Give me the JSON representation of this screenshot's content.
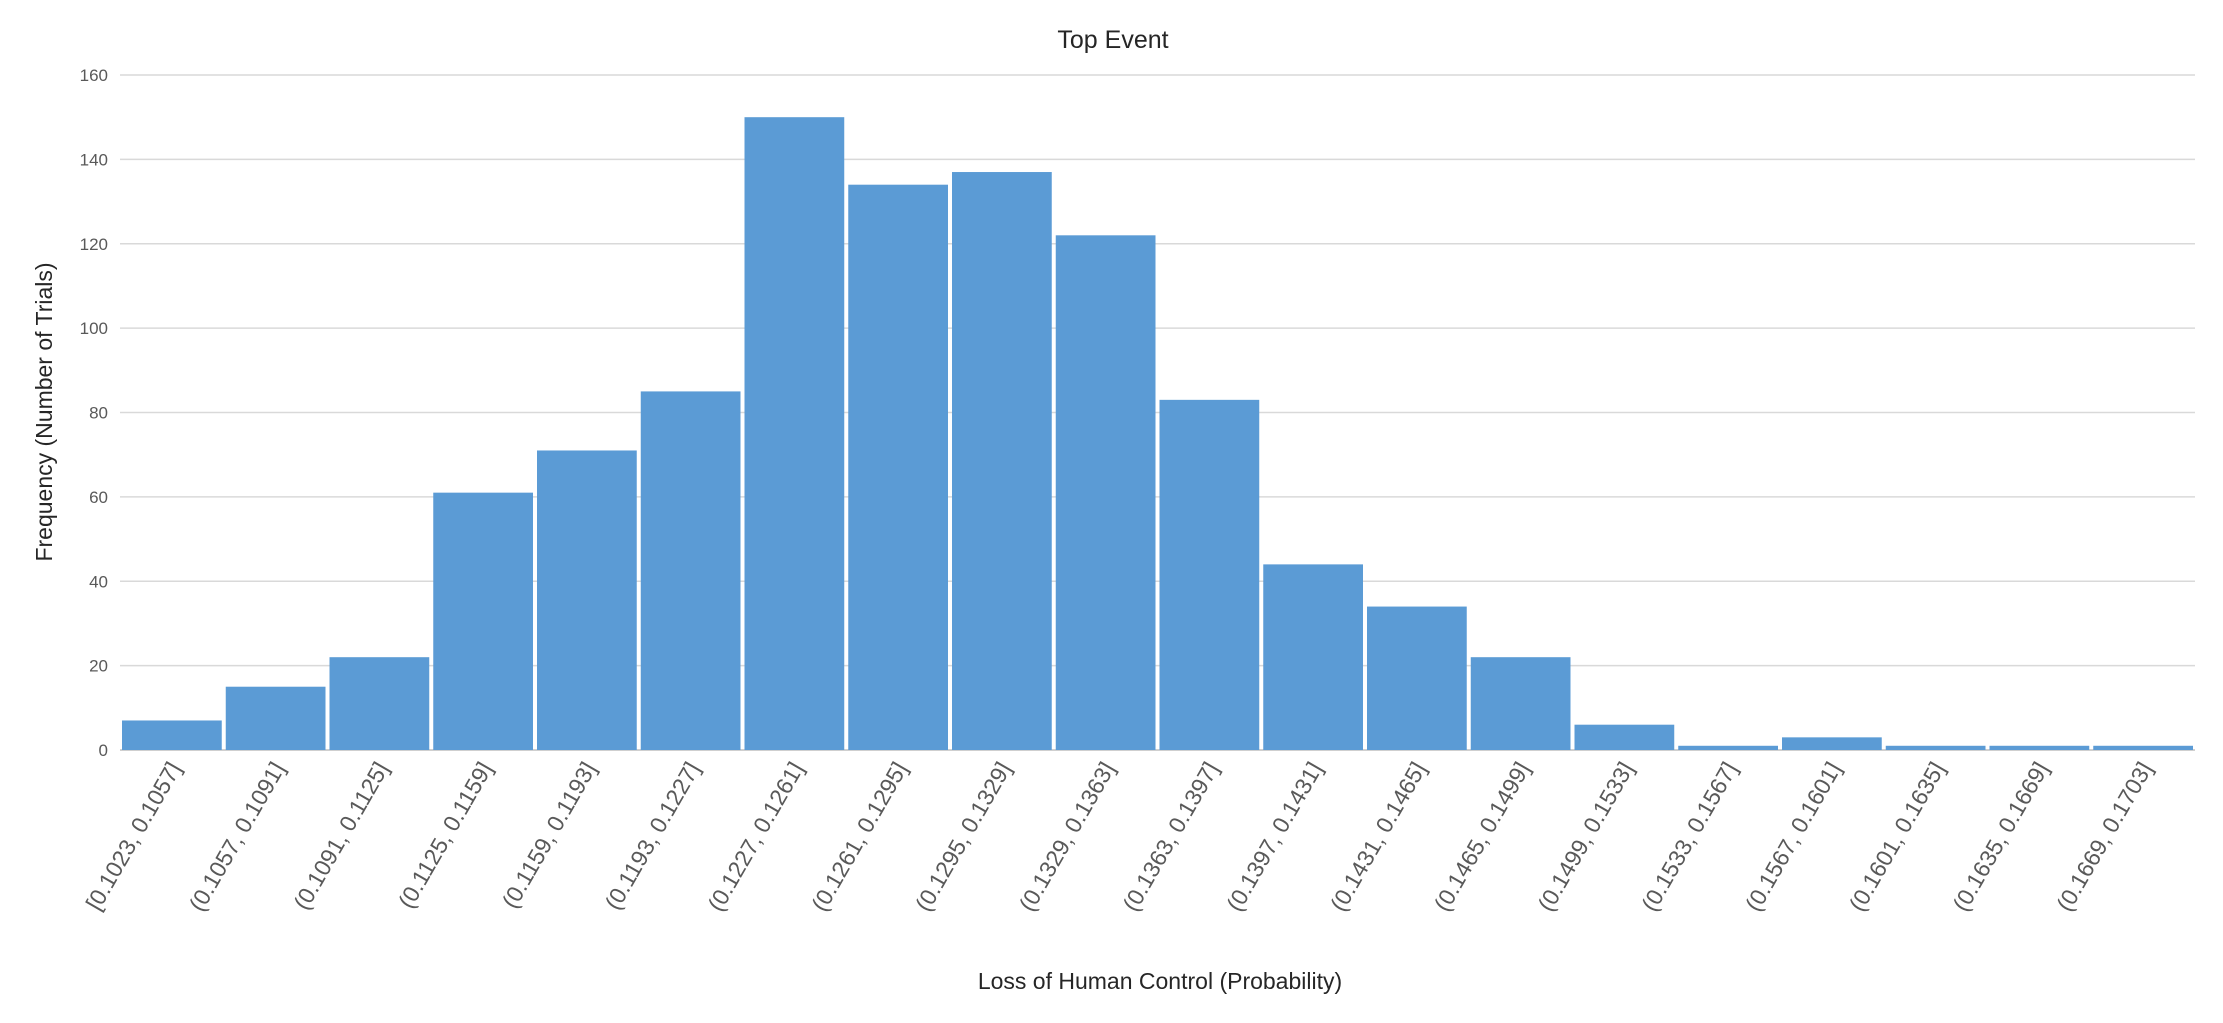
{
  "chart_data": {
    "type": "bar",
    "title": "Top Event",
    "xlabel": "Loss of Human Control (Probability)",
    "ylabel": "Frequency (Number of Trials)",
    "ylim": [
      0,
      160
    ],
    "yticks": [
      0,
      20,
      40,
      60,
      80,
      100,
      120,
      140,
      160
    ],
    "grid": true,
    "bar_color": "#5b9bd5",
    "categories": [
      "[0.1023, 0.1057]",
      "(0.1057, 0.1091]",
      "(0.1091, 0.1125]",
      "(0.1125, 0.1159]",
      "(0.1159, 0.1193]",
      "(0.1193, 0.1227]",
      "(0.1227, 0.1261]",
      "(0.1261, 0.1295]",
      "(0.1295, 0.1329]",
      "(0.1329, 0.1363]",
      "(0.1363, 0.1397]",
      "(0.1397, 0.1431]",
      "(0.1431, 0.1465]",
      "(0.1465, 0.1499]",
      "(0.1499, 0.1533]",
      "(0.1533, 0.1567]",
      "(0.1567, 0.1601]",
      "(0.1601, 0.1635]",
      "(0.1635, 0.1669]",
      "(0.1669, 0.1703]"
    ],
    "values": [
      7,
      15,
      22,
      61,
      71,
      85,
      150,
      134,
      137,
      122,
      83,
      44,
      34,
      22,
      6,
      1,
      3,
      1,
      1,
      1
    ]
  }
}
